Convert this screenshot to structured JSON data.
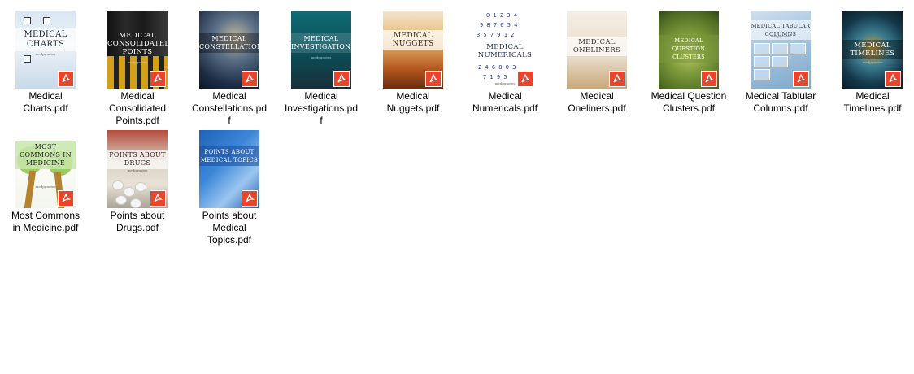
{
  "files": [
    {
      "name": "Medical Charts.pdf",
      "label_lines": [
        "Medical",
        "Charts.pdf"
      ],
      "cover_title": "MEDICAL CHARTS",
      "cover_brand": "medpgnotes",
      "badge_icon": "acrobat-pdf-icon",
      "badge_color": "#e8452d"
    },
    {
      "name": "Medical Consolidated Points.pdf",
      "label_lines": [
        "Medical",
        "Consolidated",
        "Points.pdf"
      ],
      "cover_title": "MEDICAL CONSOLIDATED POINTS",
      "cover_brand": "medpgnotes",
      "badge_icon": "acrobat-pdf-icon",
      "badge_color": "#e8452d"
    },
    {
      "name": "Medical Constellations.pdf",
      "label_lines": [
        "Medical",
        "Constellations.pd",
        "f"
      ],
      "cover_title": "MEDICAL CONSTELLATIONS",
      "cover_brand": "",
      "badge_icon": "acrobat-pdf-icon",
      "badge_color": "#e8452d"
    },
    {
      "name": "Medical Investigations.pdf",
      "label_lines": [
        "Medical",
        "Investigations.pd",
        "f"
      ],
      "cover_title": "MEDICAL INVESTIGATIONS",
      "cover_brand": "medpgnotes",
      "badge_icon": "acrobat-pdf-icon",
      "badge_color": "#e8452d"
    },
    {
      "name": "Medical Nuggets.pdf",
      "label_lines": [
        "Medical",
        "Nuggets.pdf"
      ],
      "cover_title": "MEDICAL NUGGETS",
      "cover_brand": "",
      "badge_icon": "acrobat-pdf-icon",
      "badge_color": "#e8452d"
    },
    {
      "name": "Medical Numericals.pdf",
      "label_lines": [
        "Medical",
        "Numericals.pdf"
      ],
      "cover_title": "MEDICAL NUMERICALS",
      "cover_brand": "medpgnotes",
      "badge_icon": "acrobat-pdf-icon",
      "badge_color": "#e8452d"
    },
    {
      "name": "Medical Oneliners.pdf",
      "label_lines": [
        "Medical",
        "Oneliners.pdf"
      ],
      "cover_title": "MEDICAL ONELINERS",
      "cover_brand": "",
      "badge_icon": "acrobat-pdf-icon",
      "badge_color": "#e8452d"
    },
    {
      "name": "Medical Question Clusters.pdf",
      "label_lines": [
        "Medical Question",
        "Clusters.pdf"
      ],
      "cover_title": "MEDICAL QUESTION CLUSTERS",
      "cover_brand": "medpgnotes",
      "badge_icon": "acrobat-pdf-icon",
      "badge_color": "#e8452d"
    },
    {
      "name": "Medical Tablular Columns.pdf",
      "label_lines": [
        "Medical Tablular",
        "Columns.pdf"
      ],
      "cover_title": "MEDICAL TABULAR COLUMNS",
      "cover_brand": "medpgnotes",
      "badge_icon": "acrobat-pdf-icon",
      "badge_color": "#e8452d"
    },
    {
      "name": "Medical Timelines.pdf",
      "label_lines": [
        "Medical",
        "Timelines.pdf"
      ],
      "cover_title": "MEDICAL TIMELINES",
      "cover_brand": "medpgnotes",
      "badge_icon": "acrobat-pdf-icon",
      "badge_color": "#e8452d"
    },
    {
      "name": "Most Commons in Medicine.pdf",
      "label_lines": [
        "Most Commons",
        "in Medicine.pdf"
      ],
      "cover_title": "MOST COMMONS IN MEDICINE",
      "cover_brand": "medpgnotes",
      "badge_icon": "acrobat-pdf-icon",
      "badge_color": "#e8452d"
    },
    {
      "name": "Points about Drugs.pdf",
      "label_lines": [
        "Points about",
        "Drugs.pdf"
      ],
      "cover_title": "POINTS ABOUT DRUGS",
      "cover_brand": "medpgnotes",
      "badge_icon": "acrobat-pdf-icon",
      "badge_color": "#e8452d"
    },
    {
      "name": "Points about Medical Topics.pdf",
      "label_lines": [
        "Points about",
        "Medical",
        "Topics.pdf"
      ],
      "cover_title": "POINTS ABOUT MEDICAL TOPICS",
      "cover_brand": "",
      "badge_icon": "acrobat-pdf-icon",
      "badge_color": "#e8452d"
    }
  ]
}
